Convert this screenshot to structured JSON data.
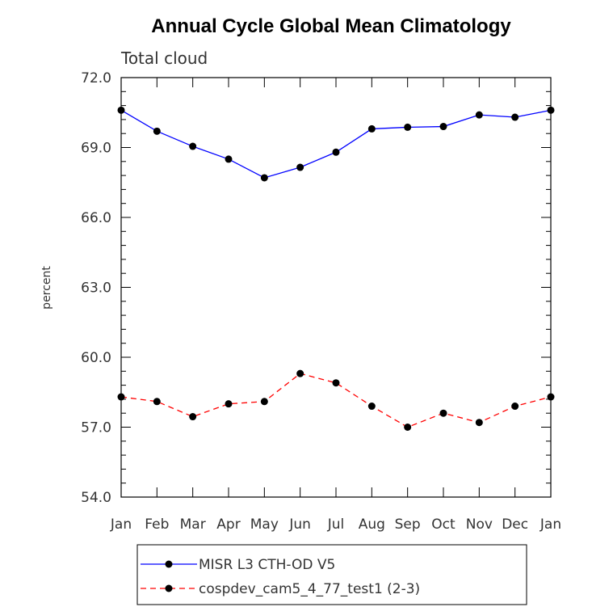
{
  "chart_data": {
    "type": "line",
    "title": "Annual Cycle Global Mean Climatology",
    "subtitle": "Total cloud",
    "ylabel": "percent",
    "xlabel": "",
    "categories": [
      "Jan",
      "Feb",
      "Mar",
      "Apr",
      "May",
      "Jun",
      "Jul",
      "Aug",
      "Sep",
      "Oct",
      "Nov",
      "Dec",
      "Jan"
    ],
    "ylim": [
      54.0,
      72.0
    ],
    "yticks": [
      "54.0",
      "57.0",
      "60.0",
      "63.0",
      "66.0",
      "69.0",
      "72.0"
    ],
    "series": [
      {
        "name": "MISR L3 CTH-OD V5",
        "color": "#0000ff",
        "dash": "solid",
        "values": [
          70.6,
          69.7,
          69.05,
          68.5,
          67.7,
          68.15,
          68.8,
          69.8,
          69.87,
          69.9,
          70.4,
          70.3,
          70.6
        ]
      },
      {
        "name": "cospdev_cam5_4_77_test1 (2-3)",
        "color": "#ff0000",
        "dash": "dashed",
        "values": [
          58.3,
          58.1,
          57.45,
          58.0,
          58.1,
          59.3,
          58.9,
          57.9,
          57.0,
          57.6,
          57.2,
          57.9,
          58.3
        ]
      }
    ],
    "marker_color": "#000000",
    "legend_placement": "bottom"
  }
}
